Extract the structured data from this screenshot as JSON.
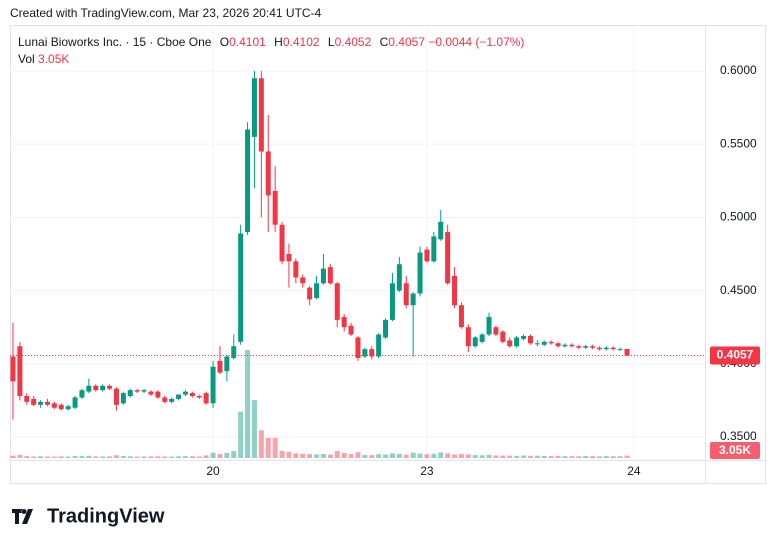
{
  "chart_data": {
    "type": "candlestick",
    "created": "Created with TradingView.com, Mar 23, 2026 20:41 UTC-4",
    "title": "Lunai Bioworks Inc. · 15 · Cboe One",
    "ohlc_labels": [
      "O",
      "H",
      "L",
      "C"
    ],
    "change": "−0.0044 (−1.07%)",
    "volume_label": "Vol",
    "volume_last_label": "3.05K",
    "brand": "TradingView",
    "up_color": "#089981",
    "down_color": "#f23645",
    "xlim": [
      -0.43,
      100.3
    ],
    "xticks": [
      {
        "value": 29,
        "label": "20"
      },
      {
        "value": 60,
        "label": "23"
      },
      {
        "value": 90,
        "label": "24"
      }
    ],
    "ylim": [
      0.3343,
      0.6314
    ],
    "yticks": [
      {
        "value": 0.35,
        "label": "0.3500"
      },
      {
        "value": 0.4,
        "label": "0.4000"
      },
      {
        "value": 0.45,
        "label": "0.4500"
      },
      {
        "value": 0.5,
        "label": "0.5000"
      },
      {
        "value": 0.55,
        "label": "0.5500"
      },
      {
        "value": 0.6,
        "label": "0.6000"
      }
    ],
    "grid": true,
    "open": [
      0.405,
      0.412,
      0.378,
      0.376,
      0.372,
      0.374,
      0.373,
      0.372,
      0.369,
      0.37,
      0.377,
      0.381,
      0.385,
      0.382,
      0.385,
      0.383,
      0.373,
      0.378,
      0.382,
      0.381,
      0.381,
      0.381,
      0.377,
      0.374,
      0.376,
      0.379,
      0.38,
      0.378,
      0.38,
      0.373,
      0.402,
      0.395,
      0.404,
      0.415,
      0.49,
      0.555,
      0.595,
      0.545,
      0.518,
      0.495,
      0.475,
      0.47,
      0.459,
      0.452,
      0.445,
      0.455,
      0.466,
      0.455,
      0.432,
      0.426,
      0.418,
      0.405,
      0.41,
      0.405,
      0.418,
      0.43,
      0.45,
      0.455,
      0.44,
      0.448,
      0.478,
      0.47,
      0.485,
      0.49,
      0.46,
      0.44,
      0.425,
      0.412,
      0.415,
      0.42,
      0.425,
      0.422,
      0.416,
      0.412,
      0.417,
      0.419,
      0.414,
      0.413,
      0.415,
      0.414,
      0.412,
      0.413,
      0.412,
      0.411,
      0.412,
      0.411,
      0.41,
      0.411,
      0.41,
      0.4101
    ],
    "high": [
      0.428,
      0.415,
      0.38,
      0.378,
      0.375,
      0.376,
      0.374,
      0.373,
      0.372,
      0.378,
      0.383,
      0.39,
      0.386,
      0.386,
      0.386,
      0.384,
      0.381,
      0.383,
      0.383,
      0.383,
      0.382,
      0.382,
      0.378,
      0.377,
      0.379,
      0.382,
      0.381,
      0.379,
      0.381,
      0.402,
      0.412,
      0.406,
      0.42,
      0.495,
      0.565,
      0.6,
      0.6,
      0.57,
      0.535,
      0.497,
      0.482,
      0.472,
      0.461,
      0.453,
      0.46,
      0.475,
      0.468,
      0.456,
      0.434,
      0.428,
      0.419,
      0.411,
      0.412,
      0.421,
      0.431,
      0.462,
      0.473,
      0.46,
      0.449,
      0.48,
      0.48,
      0.49,
      0.505,
      0.495,
      0.466,
      0.442,
      0.427,
      0.419,
      0.421,
      0.435,
      0.426,
      0.423,
      0.418,
      0.419,
      0.42,
      0.42,
      0.416,
      0.416,
      0.416,
      0.415,
      0.414,
      0.414,
      0.413,
      0.413,
      0.413,
      0.412,
      0.412,
      0.412,
      0.411,
      0.4102
    ],
    "low": [
      0.362,
      0.375,
      0.372,
      0.371,
      0.37,
      0.371,
      0.369,
      0.368,
      0.368,
      0.369,
      0.376,
      0.38,
      0.381,
      0.381,
      0.382,
      0.368,
      0.372,
      0.377,
      0.38,
      0.38,
      0.378,
      0.376,
      0.373,
      0.373,
      0.375,
      0.378,
      0.377,
      0.376,
      0.372,
      0.37,
      0.393,
      0.388,
      0.403,
      0.413,
      0.488,
      0.52,
      0.5,
      0.49,
      0.49,
      0.468,
      0.452,
      0.455,
      0.452,
      0.44,
      0.444,
      0.454,
      0.454,
      0.425,
      0.422,
      0.419,
      0.402,
      0.404,
      0.403,
      0.404,
      0.417,
      0.429,
      0.449,
      0.438,
      0.405,
      0.446,
      0.469,
      0.469,
      0.484,
      0.454,
      0.438,
      0.424,
      0.408,
      0.411,
      0.414,
      0.419,
      0.419,
      0.414,
      0.411,
      0.411,
      0.416,
      0.413,
      0.412,
      0.412,
      0.413,
      0.411,
      0.411,
      0.411,
      0.41,
      0.41,
      0.41,
      0.409,
      0.409,
      0.409,
      0.409,
      0.4052
    ],
    "close": [
      0.388,
      0.378,
      0.374,
      0.372,
      0.374,
      0.372,
      0.37,
      0.369,
      0.371,
      0.377,
      0.382,
      0.385,
      0.382,
      0.385,
      0.383,
      0.372,
      0.38,
      0.382,
      0.381,
      0.382,
      0.379,
      0.377,
      0.374,
      0.376,
      0.379,
      0.381,
      0.378,
      0.377,
      0.373,
      0.398,
      0.394,
      0.405,
      0.412,
      0.489,
      0.56,
      0.595,
      0.545,
      0.515,
      0.495,
      0.47,
      0.47,
      0.459,
      0.455,
      0.444,
      0.455,
      0.465,
      0.455,
      0.43,
      0.425,
      0.42,
      0.404,
      0.41,
      0.405,
      0.42,
      0.43,
      0.455,
      0.468,
      0.44,
      0.448,
      0.476,
      0.47,
      0.487,
      0.497,
      0.455,
      0.44,
      0.425,
      0.412,
      0.418,
      0.42,
      0.432,
      0.42,
      0.415,
      0.412,
      0.418,
      0.419,
      0.414,
      0.414,
      0.415,
      0.414,
      0.412,
      0.413,
      0.412,
      0.411,
      0.412,
      0.411,
      0.41,
      0.411,
      0.41,
      0.41,
      0.4057
    ],
    "volume": [
      3000,
      4000,
      2500,
      2000,
      2200,
      2000,
      1800,
      2100,
      2000,
      2600,
      2400,
      2900,
      2200,
      2000,
      2100,
      3500,
      2600,
      2200,
      1900,
      2000,
      2100,
      2200,
      2000,
      1800,
      2200,
      2400,
      2300,
      2000,
      3400,
      7000,
      5200,
      6500,
      9000,
      60000,
      140000,
      75000,
      36000,
      26000,
      26000,
      9000,
      8000,
      6000,
      5500,
      5000,
      4800,
      5200,
      4400,
      9000,
      6500,
      5200,
      7500,
      4000,
      3800,
      5000,
      4600,
      6000,
      5200,
      4200,
      7000,
      5600,
      4800,
      5500,
      7200,
      6000,
      4400,
      5200,
      4800,
      3800,
      3500,
      4200,
      3300,
      3000,
      3100,
      2900,
      3200,
      2800,
      3000,
      2600,
      2500,
      2700,
      2400,
      2500,
      2300,
      2600,
      2400,
      2200,
      2500,
      2300,
      2400,
      3050
    ]
  }
}
